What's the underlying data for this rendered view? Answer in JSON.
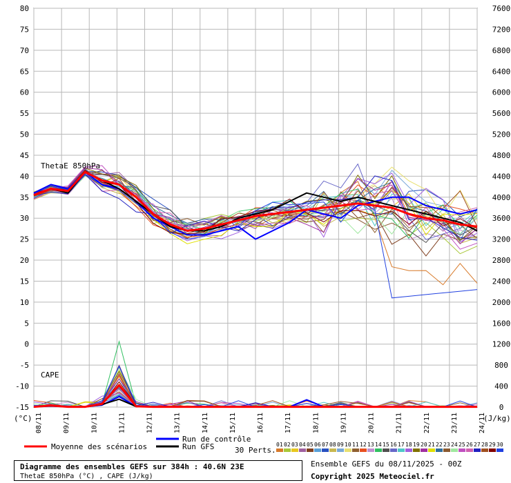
{
  "chart_data": {
    "type": "line",
    "title": "Diagramme des ensembles GEFS sur 384h : 40.6N 23E",
    "subtitle": "ThetaE 850hPa (°C) , CAPE (J/kg)",
    "run_info": "Ensemble GEFS du 08/11/2025 - 00Z",
    "copyright": "Copyright 2025 Meteociel.fr",
    "left_axis": {
      "unit": "(°C)",
      "range": [
        -15,
        80
      ],
      "ticks": [
        80,
        75,
        70,
        65,
        60,
        55,
        50,
        45,
        40,
        35,
        30,
        25,
        20,
        15,
        10,
        5,
        0,
        -5,
        -10,
        -15
      ]
    },
    "right_axis": {
      "unit": "(J/kg)",
      "range": [
        0,
        7600
      ],
      "ticks": [
        7600,
        7200,
        6800,
        6400,
        6000,
        5600,
        5200,
        4800,
        4400,
        4000,
        3600,
        3200,
        2800,
        2400,
        2000,
        1600,
        1200,
        800,
        400,
        0
      ]
    },
    "x_ticks": [
      "08/11",
      "09/11",
      "10/11",
      "11/11",
      "12/11",
      "13/11",
      "14/11",
      "15/11",
      "16/11",
      "17/11",
      "18/11",
      "19/11",
      "20/11",
      "21/11",
      "22/11",
      "23/11",
      "24/11"
    ],
    "annotations": {
      "thetae": "ThetaE 850hPa",
      "cape": "CAPE"
    },
    "legend": {
      "mean": "Moyenne des scénarios",
      "control": "Run de contrôle",
      "gfs": "Run GFS",
      "perts_label": "30 Perts."
    },
    "pert_labels": [
      "01",
      "02",
      "03",
      "04",
      "05",
      "06",
      "07",
      "08",
      "09",
      "10",
      "11",
      "12",
      "13",
      "14",
      "15",
      "16",
      "17",
      "18",
      "19",
      "20",
      "21",
      "22",
      "23",
      "24",
      "25",
      "26",
      "27",
      "28",
      "29",
      "30"
    ],
    "pert_colors": [
      "#d87a2a",
      "#a8c838",
      "#e8c820",
      "#a060a0",
      "#804020",
      "#58a0d8",
      "#2850c0",
      "#c8b850",
      "#78a8d8",
      "#e8e070",
      "#906030",
      "#e85020",
      "#c090d0",
      "#30c060",
      "#505050",
      "#6868c8",
      "#50c8c8",
      "#a060e0",
      "#807000",
      "#a030a0",
      "#e0e000",
      "#3070a0",
      "#8a5a30",
      "#a0e8a0",
      "#c050c0",
      "#d060b0",
      "#2020c0",
      "#a05020",
      "#800000",
      "#2040e0"
    ],
    "series": [
      {
        "name": "Moyenne des scénarios",
        "color": "#ff0000",
        "thetae": [
          35.5,
          37,
          36.5,
          41,
          39,
          38,
          35,
          31,
          28.5,
          27,
          27.5,
          28.5,
          29.5,
          30.5,
          31,
          31.5,
          32,
          32.5,
          33,
          33.5,
          33,
          32.5,
          31,
          30,
          29.5,
          28.5,
          28
        ],
        "cape": [
          5,
          30,
          5,
          5,
          60,
          420,
          15,
          5,
          5,
          5,
          5,
          5,
          5,
          5,
          5,
          5,
          5,
          5,
          5,
          5,
          5,
          5,
          5,
          5,
          5,
          5,
          5
        ]
      },
      {
        "name": "Run de contrôle",
        "color": "#0000ff",
        "thetae": [
          36,
          38,
          37,
          41,
          38,
          37,
          34,
          30,
          28,
          26,
          26,
          27,
          28,
          25,
          27,
          29,
          32,
          31,
          30,
          33,
          34,
          35,
          35,
          33,
          32,
          31,
          32
        ],
        "cape": [
          5,
          20,
          5,
          5,
          40,
          200,
          10,
          5,
          5,
          5,
          5,
          5,
          5,
          5,
          5,
          5,
          140,
          5,
          5,
          5,
          5,
          5,
          5,
          5,
          5,
          5,
          5
        ]
      },
      {
        "name": "Run GFS",
        "color": "#000000",
        "thetae": [
          35.5,
          37,
          36,
          41,
          39,
          37,
          34,
          31,
          28,
          27,
          27,
          28,
          30,
          31,
          32,
          34,
          36,
          35,
          34,
          35,
          34,
          33,
          32,
          31,
          30,
          29,
          27
        ],
        "cape": [
          5,
          25,
          5,
          5,
          50,
          150,
          10,
          5,
          5,
          5,
          5,
          5,
          5,
          5,
          5,
          5,
          5,
          5,
          5,
          5,
          5,
          5,
          5,
          5,
          5,
          5,
          5
        ]
      }
    ]
  }
}
